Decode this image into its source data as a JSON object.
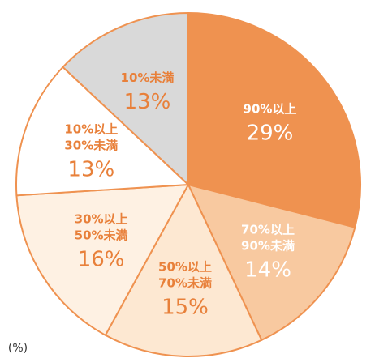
{
  "chart_data": {
    "type": "pie",
    "categories": [
      [
        "90%以上"
      ],
      [
        "70%以上",
        "90%未満"
      ],
      [
        "50%以上",
        "70%未満"
      ],
      [
        "30%以上",
        "50%未満"
      ],
      [
        "10%以上",
        "30%未満"
      ],
      [
        "10%未満"
      ]
    ],
    "values": [
      29,
      14,
      15,
      16,
      13,
      13
    ],
    "value_labels": [
      "29%",
      "14%",
      "15%",
      "16%",
      "13%",
      "13%"
    ],
    "colors": [
      "#ef9250",
      "#f8c9a0",
      "#fde8d2",
      "#fef1e3",
      "#ffffff",
      "#d9d9d9"
    ],
    "label_colors": [
      "#ffffff",
      "#ffffff",
      "#e8803a",
      "#e8803a",
      "#e8803a",
      "#e8803a"
    ],
    "unit_label": "(%)"
  }
}
